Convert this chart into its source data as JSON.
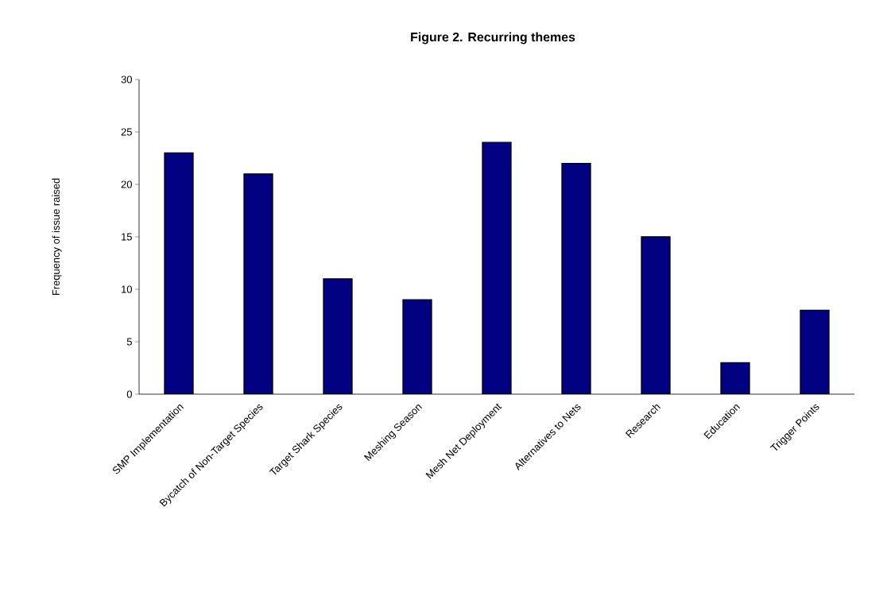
{
  "chart_data": {
    "type": "bar",
    "title": "Figure 2. Recurring themes",
    "ylabel": "Frequency of issue raised",
    "categories": [
      "SMP Implementation",
      "Bycatch of Non-Target Species",
      "Target Shark Species",
      "Meshing Season",
      "Mesh Net Deployment",
      "Alternatives to Nets",
      "Research",
      "Education",
      "Trigger Points"
    ],
    "values": [
      23,
      21,
      11,
      9,
      24,
      22,
      15,
      3,
      8
    ],
    "color": "#000080",
    "ylim": [
      0,
      30
    ],
    "yticks": [
      0,
      5,
      10,
      15,
      20,
      25,
      30
    ],
    "grid": false
  }
}
